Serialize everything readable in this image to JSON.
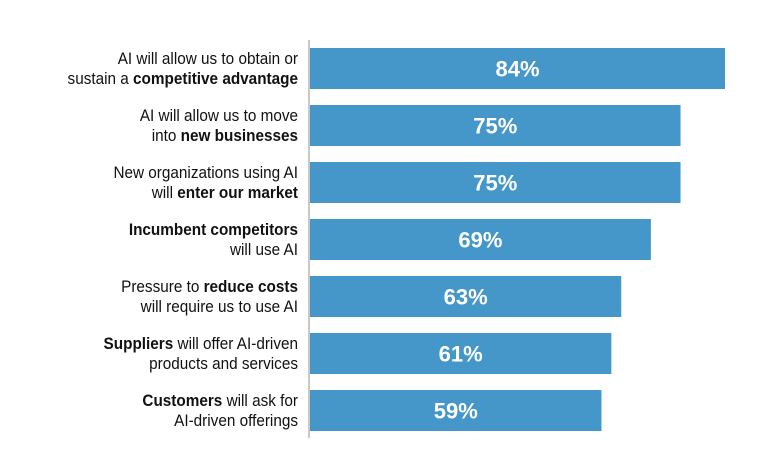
{
  "chart_data": {
    "type": "bar",
    "orientation": "horizontal",
    "bar_color": "#4597c9",
    "axis_color": "#c8c8c8",
    "xlim": [
      0,
      84
    ],
    "title": "",
    "xlabel": "",
    "ylabel": "",
    "grid": false,
    "categories": [
      {
        "line1": [
          {
            "text": "AI will allow us to obtain or",
            "bold": false
          }
        ],
        "line2": [
          {
            "text": "sustain a ",
            "bold": false
          },
          {
            "text": "competitive advantage",
            "bold": true
          }
        ]
      },
      {
        "line1": [
          {
            "text": "AI will allow us to move",
            "bold": false
          }
        ],
        "line2": [
          {
            "text": "into ",
            "bold": false
          },
          {
            "text": "new businesses",
            "bold": true
          }
        ]
      },
      {
        "line1": [
          {
            "text": "New organizations using AI",
            "bold": false
          }
        ],
        "line2": [
          {
            "text": "will ",
            "bold": false
          },
          {
            "text": "enter our market",
            "bold": true
          }
        ]
      },
      {
        "line1": [
          {
            "text": "Incumbent competitors",
            "bold": true
          }
        ],
        "line2": [
          {
            "text": "will use AI",
            "bold": false
          }
        ]
      },
      {
        "line1": [
          {
            "text": "Pressure to ",
            "bold": false
          },
          {
            "text": "reduce costs",
            "bold": true
          }
        ],
        "line2": [
          {
            "text": "will require us to use AI",
            "bold": false
          }
        ]
      },
      {
        "line1": [
          {
            "text": "Suppliers",
            "bold": true
          },
          {
            "text": " will offer AI-driven",
            "bold": false
          }
        ],
        "line2": [
          {
            "text": "products and services",
            "bold": false
          }
        ]
      },
      {
        "line1": [
          {
            "text": "Customers",
            "bold": true
          },
          {
            "text": " will ask for",
            "bold": false
          }
        ],
        "line2": [
          {
            "text": "AI-driven offerings",
            "bold": false
          }
        ]
      }
    ],
    "values": [
      84,
      75,
      75,
      69,
      63,
      61,
      59
    ],
    "value_labels": [
      "84%",
      "75%",
      "75%",
      "69%",
      "63%",
      "61%",
      "59%"
    ]
  }
}
